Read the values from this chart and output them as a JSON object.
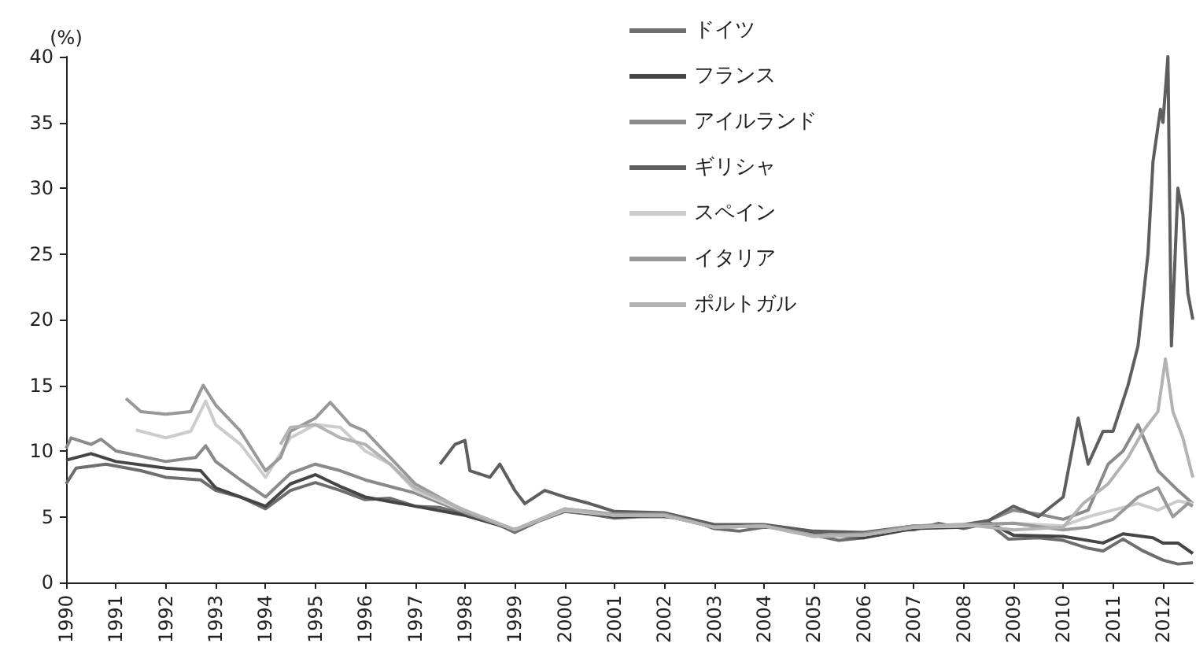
{
  "chart_data": {
    "type": "line",
    "ylabel": "(%)",
    "xlim": [
      1990,
      2012.6
    ],
    "ylim": [
      0,
      40
    ],
    "xticks": [
      1990,
      1991,
      1992,
      1993,
      1994,
      1995,
      1996,
      1997,
      1998,
      1999,
      2000,
      2001,
      2002,
      2003,
      2004,
      2005,
      2006,
      2007,
      2008,
      2009,
      2010,
      2011,
      2012
    ],
    "yticks": [
      0,
      5,
      10,
      15,
      20,
      25,
      30,
      35,
      40
    ],
    "grid": false,
    "legend": "top",
    "marker": "none",
    "line_style": "solid",
    "series": [
      {
        "name": "ドイツ",
        "color": "#6e6e6e",
        "x": [
          1990,
          1990.2,
          1990.8,
          1991.5,
          1992,
          1992.7,
          1993,
          1993.5,
          1994,
          1994.5,
          1995,
          1995.5,
          1996,
          1996.5,
          1997,
          1997.5,
          1998,
          1998.5,
          1999,
          1999.5,
          2000,
          2000.5,
          2001,
          2001.5,
          2002,
          2002.5,
          2003,
          2003.5,
          2004,
          2004.5,
          2005,
          2005.5,
          2006,
          2006.5,
          2007,
          2007.5,
          2008,
          2008.5,
          2008.9,
          2009.5,
          2010,
          2010.5,
          2010.8,
          2011.2,
          2011.6,
          2012,
          2012.3,
          2012.6
        ],
        "values": [
          7.5,
          8.7,
          9.0,
          8.5,
          8.0,
          7.8,
          7.0,
          6.5,
          5.6,
          7.0,
          7.6,
          7.0,
          6.3,
          6.4,
          5.8,
          5.7,
          5.2,
          4.7,
          3.8,
          4.7,
          5.4,
          5.2,
          4.9,
          5.0,
          5.0,
          4.8,
          4.1,
          3.9,
          4.2,
          4.1,
          3.6,
          3.2,
          3.4,
          4.0,
          4.0,
          4.5,
          4.1,
          4.5,
          3.3,
          3.4,
          3.2,
          2.6,
          2.4,
          3.3,
          2.4,
          1.7,
          1.4,
          1.5
        ]
      },
      {
        "name": "フランス",
        "color": "#454545",
        "x": [
          1990,
          1990.5,
          1991,
          1992,
          1992.7,
          1993,
          1994,
          1994.5,
          1995,
          1995.5,
          1996,
          1997,
          1998,
          1999,
          2000,
          2001,
          2002,
          2003,
          2004,
          2005,
          2006,
          2007,
          2008,
          2008.5,
          2009,
          2010,
          2010.8,
          2011.2,
          2011.8,
          2012,
          2012.3,
          2012.6
        ],
        "values": [
          9.3,
          9.8,
          9.2,
          8.7,
          8.5,
          7.2,
          5.8,
          7.5,
          8.2,
          7.3,
          6.5,
          5.8,
          5.1,
          4.0,
          5.5,
          5.0,
          5.1,
          4.2,
          4.3,
          3.7,
          3.4,
          4.1,
          4.2,
          4.6,
          3.6,
          3.5,
          3.0,
          3.7,
          3.4,
          3.0,
          3.0,
          2.2
        ]
      },
      {
        "name": "アイルランド",
        "color": "#8a8a8a",
        "x": [
          1990,
          1990.1,
          1990.5,
          1990.7,
          1991,
          1992,
          1992.6,
          1992.8,
          1993,
          1993.5,
          1994,
          1994.5,
          1995,
          1995.5,
          1996,
          1997,
          1998,
          1999,
          2000,
          2001,
          2002,
          2003,
          2004,
          2005,
          2006,
          2007,
          2008,
          2008.5,
          2009,
          2009.5,
          2010,
          2010.5,
          2010.9,
          2011.2,
          2011.5,
          2011.9,
          2012.3,
          2012.6
        ],
        "values": [
          10.2,
          11.0,
          10.5,
          10.9,
          10.0,
          9.2,
          9.5,
          10.4,
          9.2,
          7.8,
          6.5,
          8.3,
          9.0,
          8.5,
          7.8,
          6.8,
          5.3,
          4.0,
          5.5,
          5.1,
          5.2,
          4.2,
          4.3,
          3.6,
          3.6,
          4.2,
          4.3,
          4.7,
          5.5,
          5.2,
          4.8,
          5.5,
          9.0,
          10.0,
          12.0,
          8.5,
          7.0,
          6.0
        ]
      },
      {
        "name": "ギリシャ",
        "color": "#5e5e5e",
        "x": [
          1997.5,
          1997.6,
          1997.8,
          1998,
          1998.1,
          1998.5,
          1998.7,
          1999,
          1999.2,
          1999.6,
          2000,
          2000.5,
          2001,
          2002,
          2003,
          2004,
          2005,
          2006,
          2007,
          2008,
          2008.5,
          2009,
          2009.5,
          2010,
          2010.3,
          2010.5,
          2010.8,
          2011,
          2011.3,
          2011.5,
          2011.7,
          2011.8,
          2011.95,
          2012,
          2012.1,
          2012.17,
          2012.3,
          2012.4,
          2012.5,
          2012.6
        ],
        "values": [
          9.0,
          9.5,
          10.5,
          10.8,
          8.5,
          8.0,
          9.0,
          7.0,
          6.0,
          7.0,
          6.5,
          6.0,
          5.4,
          5.3,
          4.4,
          4.4,
          3.9,
          3.8,
          4.3,
          4.4,
          4.7,
          5.8,
          5.0,
          6.5,
          12.5,
          9.0,
          11.5,
          11.5,
          15,
          18,
          25,
          32,
          36,
          35,
          40,
          18,
          30,
          28,
          22,
          20
        ]
      },
      {
        "name": "スペイン",
        "color": "#cccccc",
        "x": [
          1991.4,
          1992,
          1992.5,
          1992.8,
          1993,
          1993.5,
          1994,
          1994.5,
          1995,
          1995.5,
          1996,
          1996.5,
          1997,
          1998,
          1999,
          2000,
          2001,
          2002,
          2003,
          2004,
          2005,
          2006,
          2007,
          2008,
          2009,
          2010,
          2010.5,
          2011,
          2011.5,
          2011.9,
          2012.3,
          2012.6
        ],
        "values": [
          11.6,
          11.0,
          11.5,
          13.8,
          12.0,
          10.5,
          8.0,
          11.0,
          12.0,
          11.8,
          10.0,
          9.0,
          7.0,
          5.4,
          4.0,
          5.5,
          5.1,
          5.1,
          4.2,
          4.3,
          3.5,
          3.6,
          4.2,
          4.3,
          4.5,
          4.3,
          5.0,
          5.5,
          6.0,
          5.5,
          6.2,
          6.0
        ]
      },
      {
        "name": "イタリア",
        "color": "#999999",
        "x": [
          1991.2,
          1991.5,
          1992,
          1992.5,
          1992.75,
          1993,
          1993.5,
          1994,
          1994.3,
          1994.5,
          1995,
          1995.3,
          1995.7,
          1996,
          1996.5,
          1997,
          1998,
          1999,
          2000,
          2001,
          2002,
          2003,
          2004,
          2005,
          2006,
          2007,
          2008,
          2009,
          2010,
          2010.5,
          2011,
          2011.5,
          2011.9,
          2012.2,
          2012.5,
          2012.6
        ],
        "values": [
          14,
          13.0,
          12.8,
          13.0,
          15.0,
          13.5,
          11.5,
          8.5,
          9.5,
          11.5,
          12.5,
          13.7,
          12.0,
          11.5,
          9.5,
          7.5,
          5.4,
          4.0,
          5.6,
          5.2,
          5.2,
          4.2,
          4.3,
          3.6,
          3.7,
          4.3,
          4.4,
          4.5,
          4.0,
          4.2,
          4.8,
          6.5,
          7.2,
          5.0,
          6.0,
          5.8
        ]
      },
      {
        "name": "ポルトガル",
        "color": "#b3b3b3",
        "x": [
          1994.3,
          1994.5,
          1995,
          1995.5,
          1996,
          1996.5,
          1997,
          1998,
          1999,
          2000,
          2001,
          2002,
          2003,
          2004,
          2005,
          2006,
          2007,
          2008,
          2009,
          2010,
          2010.4,
          2010.9,
          2011.3,
          2011.6,
          2011.9,
          2012.05,
          2012.2,
          2012.4,
          2012.6
        ],
        "values": [
          10.5,
          11.8,
          12.0,
          11.0,
          10.5,
          9.0,
          7.2,
          5.5,
          4.0,
          5.6,
          5.1,
          5.1,
          4.2,
          4.3,
          3.5,
          3.6,
          4.2,
          4.4,
          4.0,
          4.2,
          6.0,
          7.5,
          9.5,
          11.5,
          13.0,
          17.0,
          13.0,
          11.0,
          8.0
        ]
      }
    ]
  }
}
